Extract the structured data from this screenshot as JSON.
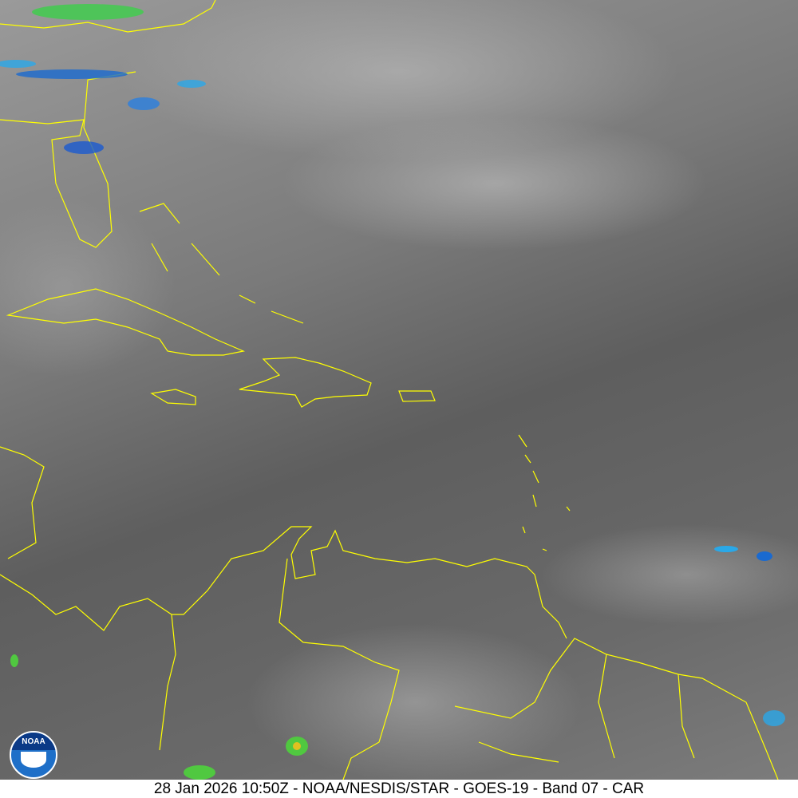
{
  "caption": "28 Jan 2026 10:50Z - NOAA/NESDIS/STAR - GOES-19 - Band 07 - CAR",
  "logo": {
    "text": "NOAA",
    "icon": "noaa-logo"
  },
  "colors": {
    "coastline": "#ffff00",
    "background": "#6a6a6a",
    "cold_cloud_tops": "#00c8ff"
  }
}
